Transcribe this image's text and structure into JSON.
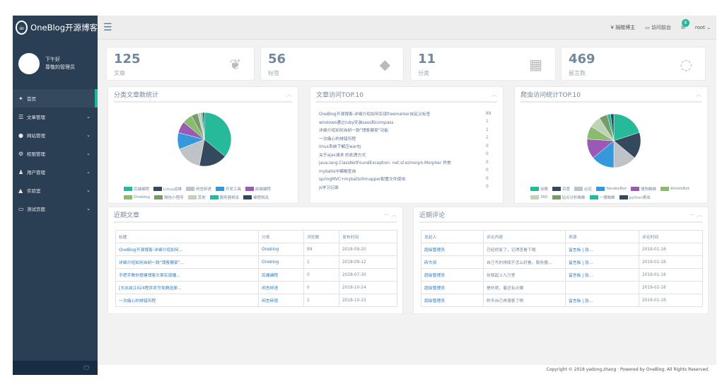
{
  "brand": {
    "title": "OneBlog开源博客"
  },
  "profile": {
    "greeting": "下午好",
    "name": "尊敬的管理员"
  },
  "nav": [
    {
      "icon": "home-icon",
      "glyph": "✦",
      "label": "首页",
      "chev": ""
    },
    {
      "icon": "list-icon",
      "glyph": "☰",
      "label": "文章管理",
      "chev": "⌄"
    },
    {
      "icon": "globe-icon",
      "glyph": "●",
      "label": "网站管理",
      "chev": "⌄"
    },
    {
      "icon": "keys-icon",
      "glyph": "⚙",
      "label": "权限管理",
      "chev": "⌄"
    },
    {
      "icon": "users-icon",
      "glyph": "♟",
      "label": "用户管理",
      "chev": "⌄"
    },
    {
      "icon": "flask-icon",
      "glyph": "▲",
      "label": "实验室",
      "chev": "⌄"
    },
    {
      "icon": "monitor-icon",
      "glyph": "▭",
      "label": "测试页面",
      "chev": "⌄"
    }
  ],
  "topbar": {
    "donate": "¥ 捐赠博主",
    "visit": "访问前台",
    "badge": "4",
    "user": "root"
  },
  "stats": [
    {
      "num": "125",
      "label": "文章",
      "icon": "leaf-icon",
      "glyph": "❦"
    },
    {
      "num": "56",
      "label": "标签",
      "icon": "tags-icon",
      "glyph": "◆"
    },
    {
      "num": "11",
      "label": "分类",
      "icon": "grid-icon",
      "glyph": "▦"
    },
    {
      "num": "469",
      "label": "留言数",
      "icon": "comments-icon",
      "glyph": "◌"
    }
  ],
  "panel_category": {
    "title": "分类文章数统计",
    "legend": [
      {
        "label": "后端编程",
        "color": "#26b99a"
      },
      {
        "label": "Linux运维",
        "color": "#34495e"
      },
      {
        "label": "闲言碎语",
        "color": "#bdc3c7"
      },
      {
        "label": "开发工具",
        "color": "#3498db"
      },
      {
        "label": "前端编程",
        "color": "#9b59b6"
      },
      {
        "label": "Oneblog",
        "color": "#8abb6f"
      },
      {
        "label": "微信小程序",
        "color": "#759c6a"
      },
      {
        "label": "其他",
        "color": "#bfd3b7"
      },
      {
        "label": "服务器相关",
        "color": "#26b99a"
      },
      {
        "label": "编程相关",
        "color": "#34495e"
      }
    ]
  },
  "panel_top10": {
    "title": "文章访问TOP.10",
    "rows": [
      {
        "title": "OneBlog开源博客-详细介绍如何实现freemarker自定义标签",
        "count": "89"
      },
      {
        "title": "windows通过ruby安装sass和compass",
        "count": "1"
      },
      {
        "title": "详细介绍如何自研一款\"博客搬家\"功能",
        "count": "1"
      },
      {
        "title": "一次痛心的排错历程",
        "count": "1"
      },
      {
        "title": "linux系统下解压war包",
        "count": "0"
      },
      {
        "title": "关于ajax请求 的处理方式",
        "count": "0"
      },
      {
        "title": "java.lang.ClassNotFoundException: net.sf.ezmorph.Morpher 异常",
        "count": "0"
      },
      {
        "title": "mybatis中模糊查询",
        "count": "0"
      },
      {
        "title": "springMVC+mybatis中mapper配置文件使用",
        "count": "0"
      },
      {
        "title": "js学习记录",
        "count": "0"
      }
    ]
  },
  "panel_spider": {
    "title": "爬虫访问统计TOP.10",
    "legend": [
      {
        "label": "谷歌",
        "color": "#26b99a"
      },
      {
        "label": "百度",
        "color": "#34495e"
      },
      {
        "label": "必应",
        "color": "#bdc3c7"
      },
      {
        "label": "YandexBot",
        "color": "#3498db"
      },
      {
        "label": "搜狗蜘蛛",
        "color": "#9b59b6"
      },
      {
        "label": "AhrefsBot",
        "color": "#8abb6f"
      },
      {
        "label": "360",
        "color": "#bfd3b7"
      },
      {
        "label": "站点分析蜘蛛",
        "color": "#759c6a"
      },
      {
        "label": "一搜蜘蛛",
        "color": "#26b99a"
      },
      {
        "label": "python爬虫",
        "color": "#34495e"
      }
    ]
  },
  "recent_articles": {
    "title": "近期文章",
    "headers": [
      "标题",
      "分类",
      "浏览数",
      "发布时间"
    ],
    "rows": [
      [
        "OneBlog开源博客-详细介绍如何...",
        "Oneblog",
        "89",
        "2018-09-20"
      ],
      [
        "详细介绍如何自研一款\"博客搬家\"...",
        "Oneblog",
        "1",
        "2018-09-12"
      ],
      [
        "手把手教你搭建博客文章实现播...",
        "后端编程",
        "0",
        "2018-07-30"
      ],
      [
        "[大出血]1024程序员节免费送原...",
        "闲言碎语",
        "0",
        "2018-10-24"
      ],
      [
        "一次痛心的排错历程",
        "闲言碎语",
        "1",
        "2018-10-15"
      ]
    ]
  },
  "recent_comments": {
    "title": "近期评论",
    "headers": [
      "发起人",
      "评论内容",
      "来源",
      "评论时间"
    ],
    "rows": [
      [
        "超级管理员",
        "已经修复了，记得查看下哦",
        "留言板 | 张...",
        "2019-01-16"
      ],
      [
        "砖大叔",
        "自己写的排版不怎么好看，服务器...",
        "留言板 | 张...",
        "2019-01-16"
      ],
      [
        "超级管理员",
        "扶我起上九万里",
        "留言板 | 张...",
        "2019-01-16"
      ],
      [
        "超级管理员",
        "是的呢，着还有点懒",
        "",
        "2019-01-16"
      ],
      [
        "超级管理员",
        "昨天自己再博客了啊",
        "留言板 | 张...",
        "2019-01-16"
      ]
    ]
  },
  "footer": {
    "text": "Copyright © 2018 yadong.zhang · Powered by OneBlog. All Rights Reserved."
  }
}
